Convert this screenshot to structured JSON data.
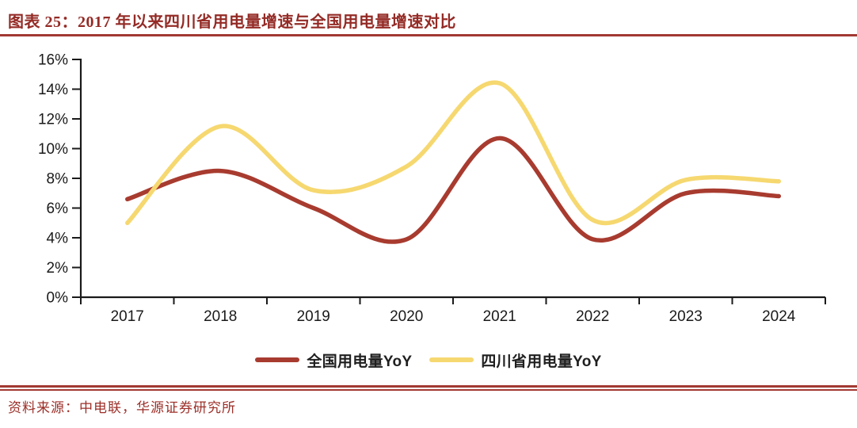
{
  "title": "图表 25：2017 年以来四川省用电量增速与全国用电量增速对比",
  "source": "资料来源：中电联，华源证券研究所",
  "colors": {
    "title": "#942B26",
    "rule": "#A23933",
    "source": "#9C2F28",
    "axis": "#1A1A1A"
  },
  "chart_data": {
    "type": "line",
    "title": "2017 年以来四川省用电量增速与全国用电量增速对比",
    "categories": [
      "2017",
      "2018",
      "2019",
      "2020",
      "2021",
      "2022",
      "2023",
      "2024"
    ],
    "series": [
      {
        "name": "全国用电量YoY",
        "color": "#A83B2F",
        "values": [
          6.6,
          8.5,
          6.0,
          3.9,
          10.7,
          3.9,
          7.0,
          6.8
        ]
      },
      {
        "name": "四川省用电量YoY",
        "color": "#F6D870",
        "values": [
          5.0,
          11.5,
          7.2,
          8.8,
          14.4,
          5.2,
          7.9,
          7.8
        ]
      }
    ],
    "ylim": [
      0,
      16
    ],
    "ytick_step": 2,
    "yticks": [
      "0%",
      "2%",
      "4%",
      "6%",
      "8%",
      "10%",
      "12%",
      "14%",
      "16%"
    ],
    "xlabel": "",
    "ylabel": "",
    "grid": false,
    "smooth": true,
    "legend_position": "bottom"
  }
}
